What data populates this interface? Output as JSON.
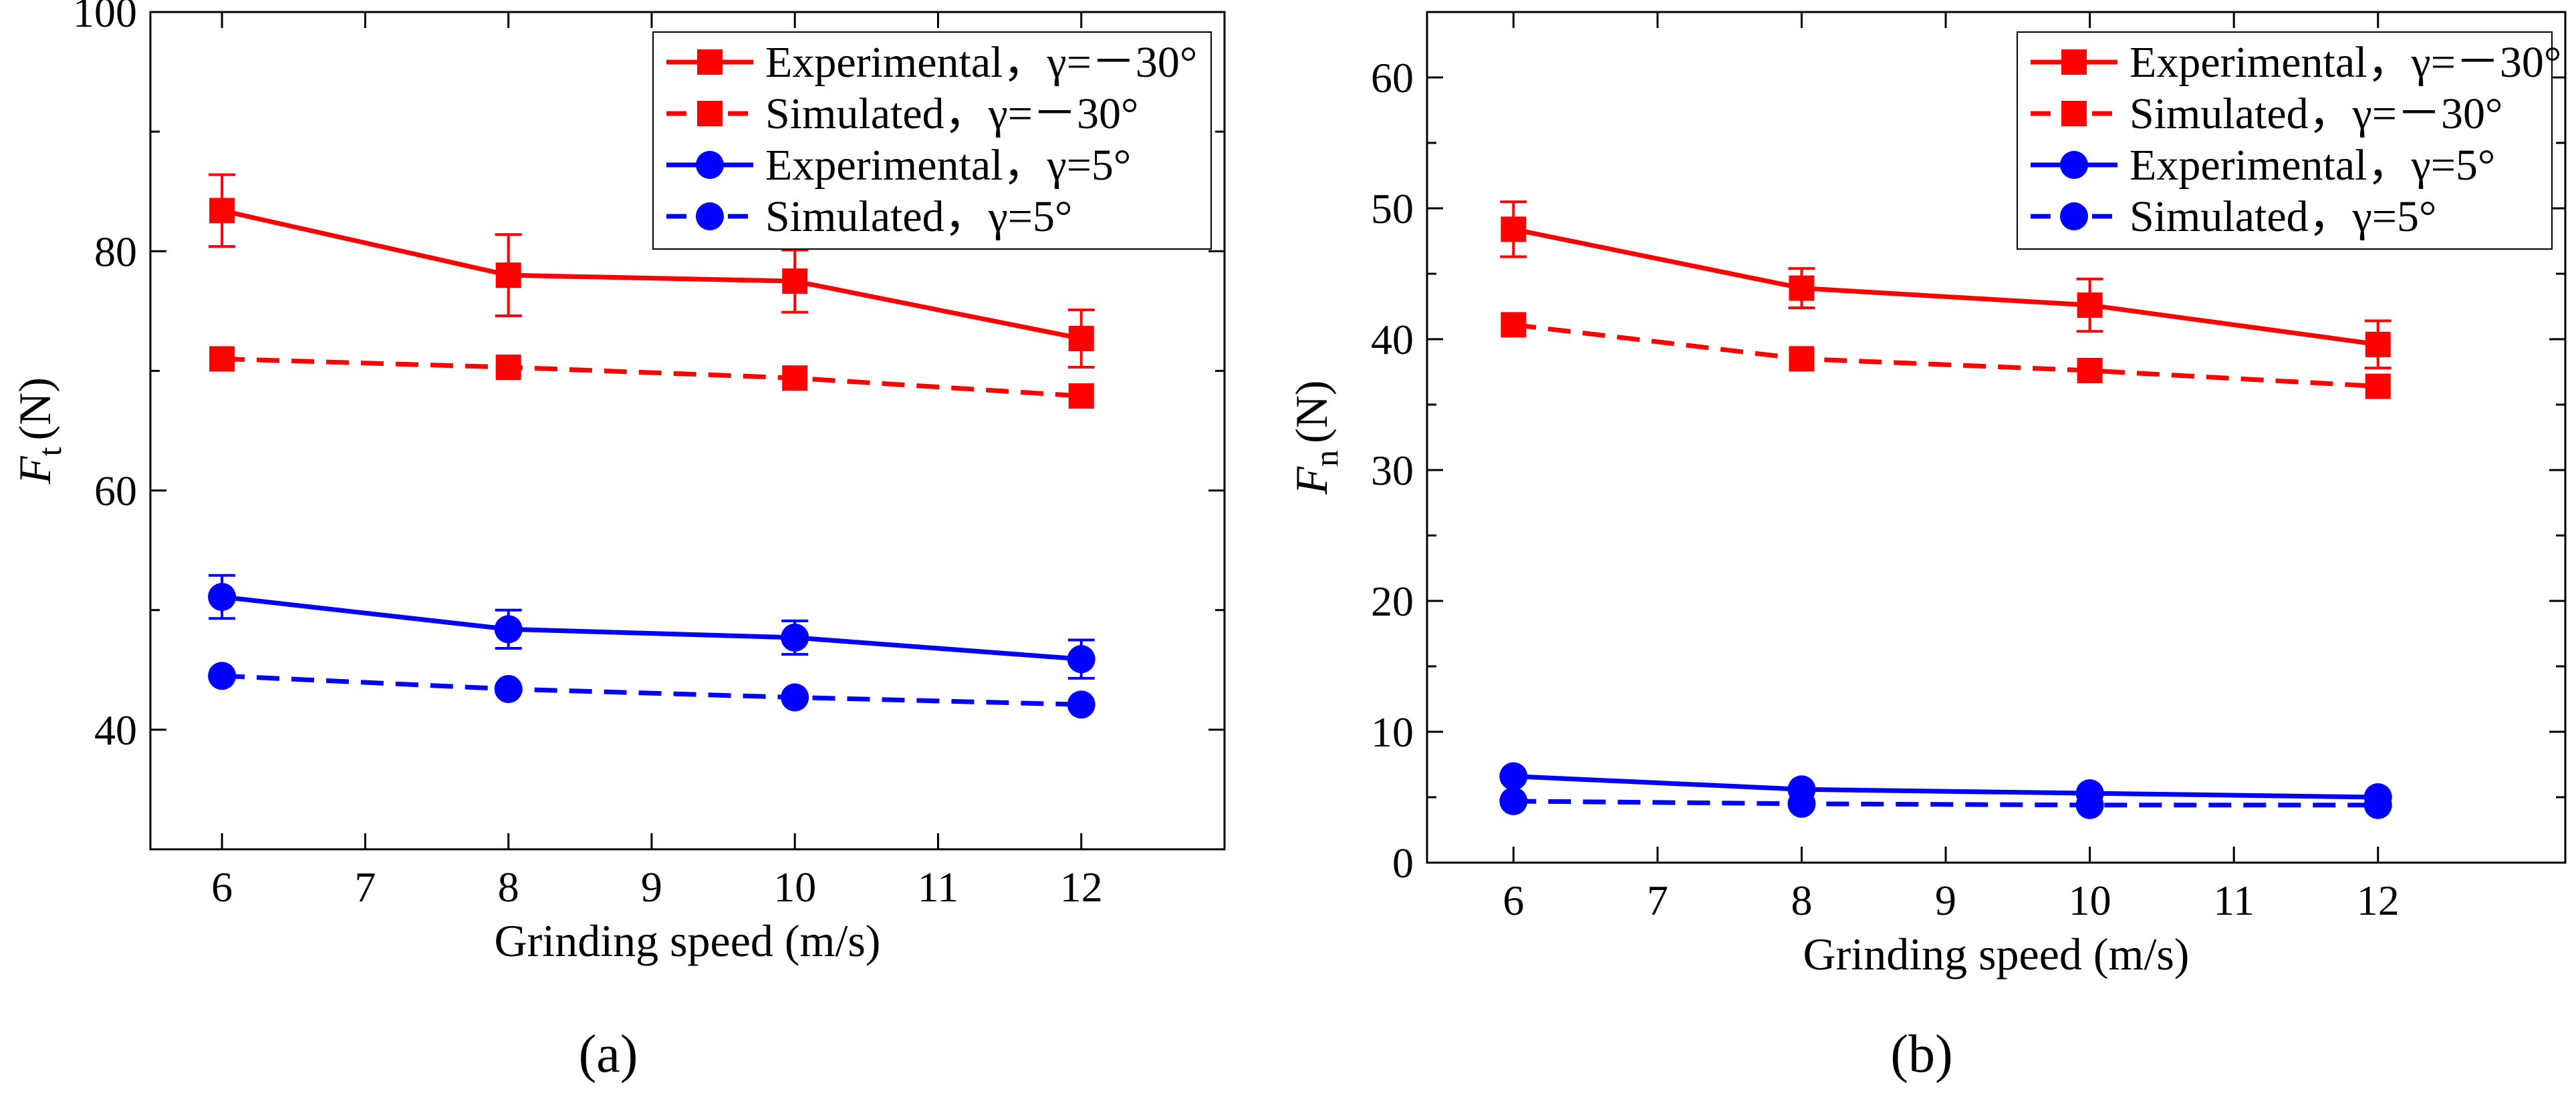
{
  "figure": {
    "panels": [
      "(a)",
      "(b)"
    ]
  },
  "chart_data": [
    {
      "type": "line",
      "panel_label": "(a)",
      "panel_letter": "a",
      "xlabel": "Grinding speed (m/s)",
      "ylabel_main": "F",
      "ylabel_sub": "t",
      "ylabel_unit": "(N)",
      "xlim": [
        5.5,
        13
      ],
      "ylim": [
        30,
        100
      ],
      "xticks": [
        6,
        7,
        8,
        9,
        10,
        11,
        12
      ],
      "yticks": [
        40,
        60,
        80,
        100
      ],
      "legend_position": "top-right",
      "x": [
        6,
        8,
        10,
        12
      ],
      "series": [
        {
          "name": "Experimental，γ=－30°",
          "color": "#ff0000",
          "marker": "square",
          "line": "solid",
          "values": [
            83.4,
            78.0,
            77.5,
            72.7
          ],
          "errors": [
            3.0,
            3.4,
            2.6,
            2.4
          ]
        },
        {
          "name": "Simulated，γ=－30°",
          "color": "#ff0000",
          "marker": "square",
          "line": "dashed",
          "values": [
            71.0,
            70.3,
            69.4,
            67.9
          ],
          "errors": [
            0,
            0,
            0,
            0
          ]
        },
        {
          "name": "Experimental，γ=5°",
          "color": "#0000ff",
          "marker": "circle",
          "line": "solid",
          "values": [
            51.1,
            48.4,
            47.7,
            45.9
          ],
          "errors": [
            1.8,
            1.6,
            1.4,
            1.6
          ]
        },
        {
          "name": "Simulated，γ=5°",
          "color": "#0000ff",
          "marker": "circle",
          "line": "dashed",
          "values": [
            44.5,
            43.4,
            42.7,
            42.1
          ],
          "errors": [
            0,
            0,
            0,
            0
          ]
        }
      ]
    },
    {
      "type": "line",
      "panel_label": "(b)",
      "panel_letter": "b",
      "xlabel": "Grinding speed (m/s)",
      "ylabel_main": "F",
      "ylabel_sub": "n",
      "ylabel_unit": "(N)",
      "xlim": [
        5.4,
        13.3
      ],
      "ylim": [
        0,
        65
      ],
      "xticks": [
        6,
        7,
        8,
        9,
        10,
        11,
        12
      ],
      "yticks": [
        0,
        10,
        20,
        30,
        40,
        50,
        60
      ],
      "legend_position": "top-right",
      "x": [
        6,
        8,
        10,
        12
      ],
      "series": [
        {
          "name": "Experimental，γ=－30°",
          "color": "#ff0000",
          "marker": "square",
          "line": "solid",
          "values": [
            48.4,
            43.9,
            42.6,
            39.6
          ],
          "errors": [
            2.1,
            1.5,
            2.0,
            1.8
          ]
        },
        {
          "name": "Simulated，γ=－30°",
          "color": "#ff0000",
          "marker": "square",
          "line": "dashed",
          "values": [
            41.1,
            38.5,
            37.6,
            36.4
          ],
          "errors": [
            0,
            0,
            0,
            0
          ]
        },
        {
          "name": "Experimental，γ=5°",
          "color": "#0000ff",
          "marker": "circle",
          "line": "solid",
          "values": [
            6.6,
            5.6,
            5.3,
            5.0
          ],
          "errors": [
            0,
            0,
            0,
            0
          ]
        },
        {
          "name": "Simulated，γ=5°",
          "color": "#0000ff",
          "marker": "circle",
          "line": "dashed",
          "values": [
            4.7,
            4.5,
            4.4,
            4.4
          ],
          "errors": [
            0,
            0,
            0,
            0
          ]
        }
      ]
    }
  ]
}
